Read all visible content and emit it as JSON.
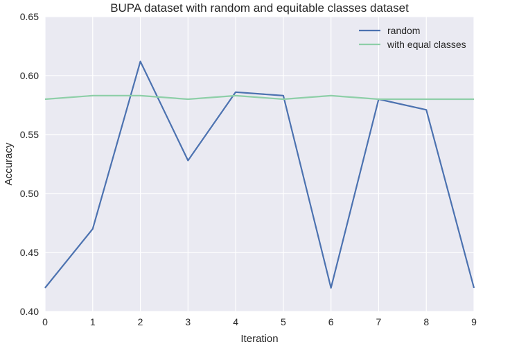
{
  "chart_data": {
    "type": "line",
    "title": "BUPA dataset with random and equitable classes dataset",
    "xlabel": "Iteration",
    "ylabel": "Accuracy",
    "x": [
      0,
      1,
      2,
      3,
      4,
      5,
      6,
      7,
      8,
      9
    ],
    "xlim": [
      0,
      9
    ],
    "ylim": [
      0.4,
      0.65
    ],
    "xticks": [
      "0",
      "1",
      "2",
      "3",
      "4",
      "5",
      "6",
      "7",
      "8",
      "9"
    ],
    "yticks": [
      "0.40",
      "0.45",
      "0.50",
      "0.55",
      "0.60",
      "0.65"
    ],
    "grid": true,
    "legend": "top-right",
    "series": [
      {
        "name": "random",
        "color": "#4c72b0",
        "values": [
          0.42,
          0.47,
          0.612,
          0.528,
          0.586,
          0.583,
          0.42,
          0.58,
          0.571,
          0.42
        ]
      },
      {
        "name": "with equal classes",
        "color": "#8ecfa8",
        "values": [
          0.58,
          0.583,
          0.583,
          0.58,
          0.583,
          0.58,
          0.583,
          0.58,
          0.58,
          0.58
        ]
      }
    ]
  }
}
